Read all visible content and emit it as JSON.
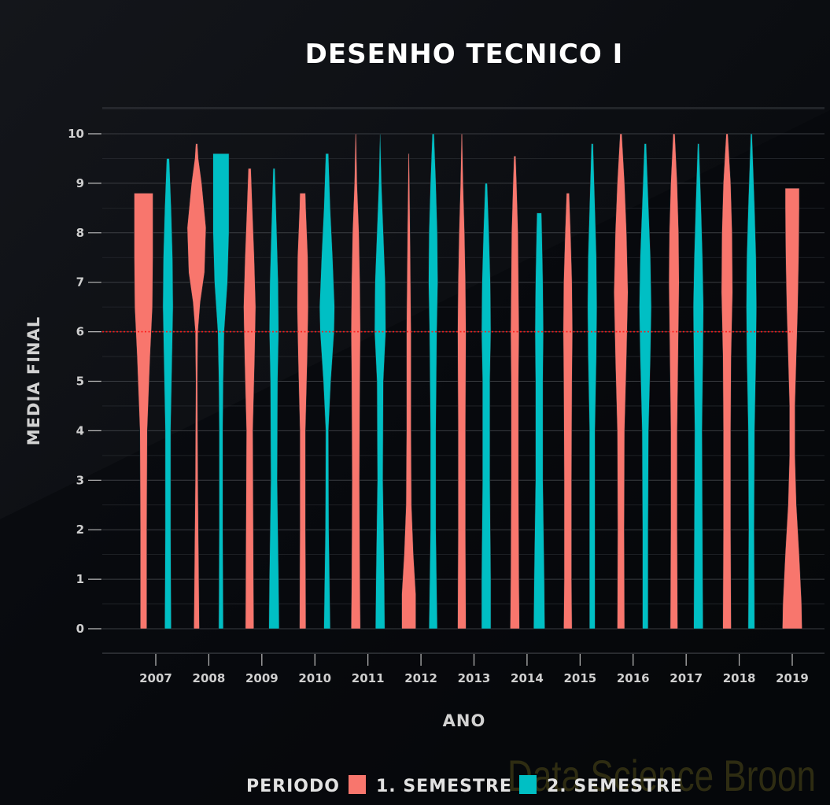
{
  "chart_data": {
    "type": "violin",
    "title": "DESENHO TECNICO I",
    "xlabel": "ANO",
    "ylabel": "MEDIA FINAL",
    "ylim": [
      0,
      10
    ],
    "yticks": [
      "0",
      "1",
      "2",
      "3",
      "4",
      "5",
      "6",
      "7",
      "8",
      "9",
      "10"
    ],
    "categories": [
      "2007",
      "2008",
      "2009",
      "2010",
      "2011",
      "2012",
      "2013",
      "2014",
      "2015",
      "2016",
      "2017",
      "2018",
      "2019"
    ],
    "reference_line": {
      "y": 6,
      "color": "#ff1a1a",
      "style": "dotted"
    },
    "legend": {
      "title": "PERIODO",
      "position": "bottom"
    },
    "series": [
      {
        "name": "1. SEMESTRE",
        "color": "#f8766d",
        "groups": [
          {
            "x": "2007",
            "min": 0,
            "max": 8.8,
            "width": [
              [
                0,
                0.35
              ],
              [
                2,
                0.35
              ],
              [
                4,
                0.4
              ],
              [
                5.5,
                0.7
              ],
              [
                6.5,
                0.95
              ],
              [
                7.5,
                1.0
              ],
              [
                8.5,
                1.0
              ],
              [
                8.8,
                1.0
              ]
            ]
          },
          {
            "x": "2008",
            "min": 0,
            "max": 9.8,
            "width": [
              [
                0,
                0.3
              ],
              [
                1,
                0.25
              ],
              [
                3,
                0.15
              ],
              [
                5,
                0.1
              ],
              [
                6,
                0.15
              ],
              [
                6.6,
                0.4
              ],
              [
                7.2,
                0.85
              ],
              [
                8.1,
                1.0
              ],
              [
                9,
                0.55
              ],
              [
                9.5,
                0.2
              ],
              [
                9.8,
                0.1
              ]
            ]
          },
          {
            "x": "2009",
            "min": 0,
            "max": 9.3,
            "width": [
              [
                0,
                0.45
              ],
              [
                2,
                0.4
              ],
              [
                4,
                0.35
              ],
              [
                5.5,
                0.55
              ],
              [
                6.5,
                0.65
              ],
              [
                7.5,
                0.5
              ],
              [
                8.5,
                0.3
              ],
              [
                9.3,
                0.15
              ]
            ]
          },
          {
            "x": "2010",
            "min": 0,
            "max": 8.8,
            "width": [
              [
                0,
                0.35
              ],
              [
                2,
                0.3
              ],
              [
                4,
                0.3
              ],
              [
                5.5,
                0.5
              ],
              [
                6.5,
                0.6
              ],
              [
                7.5,
                0.55
              ],
              [
                8.5,
                0.35
              ],
              [
                8.8,
                0.3
              ]
            ]
          },
          {
            "x": "2011",
            "min": 0,
            "max": 10,
            "width": [
              [
                0,
                0.5
              ],
              [
                1,
                0.45
              ],
              [
                3,
                0.4
              ],
              [
                5,
                0.45
              ],
              [
                6,
                0.5
              ],
              [
                7,
                0.45
              ],
              [
                8,
                0.35
              ],
              [
                9,
                0.15
              ],
              [
                10,
                0.05
              ]
            ]
          },
          {
            "x": "2012",
            "min": 0,
            "max": 9.6,
            "width": [
              [
                0,
                0.75
              ],
              [
                0.7,
                0.75
              ],
              [
                1.5,
                0.5
              ],
              [
                2.5,
                0.3
              ],
              [
                4,
                0.25
              ],
              [
                6,
                0.25
              ],
              [
                7,
                0.2
              ],
              [
                8,
                0.15
              ],
              [
                9.6,
                0.05
              ]
            ]
          },
          {
            "x": "2013",
            "min": 0,
            "max": 10,
            "width": [
              [
                0,
                0.45
              ],
              [
                2,
                0.4
              ],
              [
                4,
                0.4
              ],
              [
                6,
                0.45
              ],
              [
                7,
                0.4
              ],
              [
                8,
                0.3
              ],
              [
                9,
                0.15
              ],
              [
                10,
                0.05
              ]
            ]
          },
          {
            "x": "2014",
            "min": 0,
            "max": 9.55,
            "width": [
              [
                0,
                0.5
              ],
              [
                1,
                0.45
              ],
              [
                3,
                0.4
              ],
              [
                5,
                0.4
              ],
              [
                6,
                0.45
              ],
              [
                7,
                0.4
              ],
              [
                8,
                0.35
              ],
              [
                9,
                0.2
              ],
              [
                9.55,
                0.1
              ]
            ]
          },
          {
            "x": "2015",
            "min": 0,
            "max": 8.8,
            "width": [
              [
                0,
                0.45
              ],
              [
                1,
                0.4
              ],
              [
                3,
                0.4
              ],
              [
                5,
                0.45
              ],
              [
                6,
                0.5
              ],
              [
                7,
                0.45
              ],
              [
                8,
                0.3
              ],
              [
                8.8,
                0.15
              ]
            ]
          },
          {
            "x": "2016",
            "min": 0,
            "max": 10,
            "width": [
              [
                0,
                0.4
              ],
              [
                2,
                0.35
              ],
              [
                4,
                0.4
              ],
              [
                5.5,
                0.6
              ],
              [
                6.8,
                0.75
              ],
              [
                8,
                0.6
              ],
              [
                9,
                0.4
              ],
              [
                10,
                0.1
              ]
            ]
          },
          {
            "x": "2017",
            "min": 0,
            "max": 10,
            "width": [
              [
                0,
                0.4
              ],
              [
                2,
                0.35
              ],
              [
                4,
                0.35
              ],
              [
                5.5,
                0.45
              ],
              [
                7,
                0.55
              ],
              [
                8,
                0.5
              ],
              [
                9,
                0.35
              ],
              [
                10,
                0.1
              ]
            ]
          },
          {
            "x": "2018",
            "min": 0,
            "max": 10,
            "width": [
              [
                0,
                0.45
              ],
              [
                2,
                0.4
              ],
              [
                4,
                0.4
              ],
              [
                5.5,
                0.45
              ],
              [
                6.8,
                0.6
              ],
              [
                8,
                0.55
              ],
              [
                9,
                0.4
              ],
              [
                10,
                0.1
              ]
            ]
          },
          {
            "x": "2019",
            "min": 0,
            "max": 8.9,
            "width": [
              [
                0,
                1.05
              ],
              [
                0.5,
                1.0
              ],
              [
                1.5,
                0.75
              ],
              [
                2.5,
                0.45
              ],
              [
                3.5,
                0.3
              ],
              [
                4.5,
                0.3
              ],
              [
                5.5,
                0.45
              ],
              [
                6.5,
                0.6
              ],
              [
                7.5,
                0.7
              ],
              [
                8.5,
                0.75
              ],
              [
                8.9,
                0.75
              ]
            ]
          }
        ]
      },
      {
        "name": "2. SEMESTRE",
        "color": "#00bfc4",
        "groups": [
          {
            "x": "2007",
            "min": 0,
            "max": 9.5,
            "width": [
              [
                0,
                0.35
              ],
              [
                2,
                0.3
              ],
              [
                4,
                0.3
              ],
              [
                5.5,
                0.45
              ],
              [
                6.5,
                0.55
              ],
              [
                7.5,
                0.5
              ],
              [
                8.5,
                0.35
              ],
              [
                9.5,
                0.15
              ]
            ]
          },
          {
            "x": "2008",
            "min": 0,
            "max": 9.6,
            "width": [
              [
                0,
                0.25
              ],
              [
                2,
                0.2
              ],
              [
                4,
                0.2
              ],
              [
                5,
                0.25
              ],
              [
                6,
                0.35
              ],
              [
                7,
                0.7
              ],
              [
                8,
                0.85
              ],
              [
                9,
                0.85
              ],
              [
                9.6,
                0.85
              ]
            ]
          },
          {
            "x": "2009",
            "min": 0,
            "max": 9.3,
            "width": [
              [
                0,
                0.55
              ],
              [
                1,
                0.5
              ],
              [
                3,
                0.35
              ],
              [
                5,
                0.4
              ],
              [
                6,
                0.5
              ],
              [
                7,
                0.45
              ],
              [
                8,
                0.3
              ],
              [
                9.3,
                0.1
              ]
            ]
          },
          {
            "x": "2010",
            "min": 0,
            "max": 9.6,
            "width": [
              [
                0,
                0.35
              ],
              [
                2,
                0.2
              ],
              [
                4,
                0.15
              ],
              [
                5,
                0.4
              ],
              [
                6,
                0.75
              ],
              [
                6.5,
                0.8
              ],
              [
                7.5,
                0.6
              ],
              [
                8.5,
                0.35
              ],
              [
                9.6,
                0.15
              ]
            ]
          },
          {
            "x": "2011",
            "min": 0,
            "max": 10,
            "width": [
              [
                0,
                0.5
              ],
              [
                1,
                0.45
              ],
              [
                3,
                0.3
              ],
              [
                5,
                0.35
              ],
              [
                6,
                0.6
              ],
              [
                7,
                0.55
              ],
              [
                8,
                0.35
              ],
              [
                9,
                0.15
              ],
              [
                10,
                0.03
              ]
            ]
          },
          {
            "x": "2012",
            "min": 0,
            "max": 10,
            "width": [
              [
                0,
                0.45
              ],
              [
                2,
                0.3
              ],
              [
                4,
                0.3
              ],
              [
                6,
                0.4
              ],
              [
                7,
                0.5
              ],
              [
                8,
                0.45
              ],
              [
                9,
                0.3
              ],
              [
                10,
                0.1
              ]
            ]
          },
          {
            "x": "2013",
            "min": 0,
            "max": 9.0,
            "width": [
              [
                0,
                0.5
              ],
              [
                1,
                0.5
              ],
              [
                3,
                0.4
              ],
              [
                5,
                0.4
              ],
              [
                6,
                0.5
              ],
              [
                7,
                0.45
              ],
              [
                8,
                0.3
              ],
              [
                9,
                0.12
              ]
            ]
          },
          {
            "x": "2014",
            "min": 0,
            "max": 8.4,
            "width": [
              [
                0,
                0.6
              ],
              [
                1,
                0.55
              ],
              [
                3,
                0.4
              ],
              [
                5,
                0.4
              ],
              [
                6,
                0.45
              ],
              [
                7,
                0.4
              ],
              [
                8,
                0.3
              ],
              [
                8.4,
                0.25
              ]
            ]
          },
          {
            "x": "2015",
            "min": 0,
            "max": 9.8,
            "width": [
              [
                0,
                0.3
              ],
              [
                2,
                0.3
              ],
              [
                4,
                0.3
              ],
              [
                5.5,
                0.45
              ],
              [
                6.5,
                0.5
              ],
              [
                7.5,
                0.45
              ],
              [
                8.5,
                0.3
              ],
              [
                9.8,
                0.1
              ]
            ]
          },
          {
            "x": "2016",
            "min": 0,
            "max": 9.8,
            "width": [
              [
                0,
                0.3
              ],
              [
                2,
                0.3
              ],
              [
                4,
                0.35
              ],
              [
                5.5,
                0.55
              ],
              [
                6.5,
                0.65
              ],
              [
                7.5,
                0.55
              ],
              [
                8.5,
                0.35
              ],
              [
                9.8,
                0.1
              ]
            ]
          },
          {
            "x": "2017",
            "min": 0,
            "max": 9.8,
            "width": [
              [
                0,
                0.5
              ],
              [
                2,
                0.45
              ],
              [
                4,
                0.4
              ],
              [
                5.5,
                0.5
              ],
              [
                6.5,
                0.55
              ],
              [
                7.5,
                0.45
              ],
              [
                8.5,
                0.3
              ],
              [
                9.8,
                0.08
              ]
            ]
          },
          {
            "x": "2018",
            "min": 0,
            "max": 10,
            "width": [
              [
                0,
                0.35
              ],
              [
                2,
                0.3
              ],
              [
                4,
                0.35
              ],
              [
                5.5,
                0.5
              ],
              [
                6.5,
                0.55
              ],
              [
                7.5,
                0.5
              ],
              [
                8.5,
                0.35
              ],
              [
                10,
                0.08
              ]
            ]
          }
        ]
      }
    ]
  },
  "watermark": {
    "text": "Data Science Broon"
  }
}
